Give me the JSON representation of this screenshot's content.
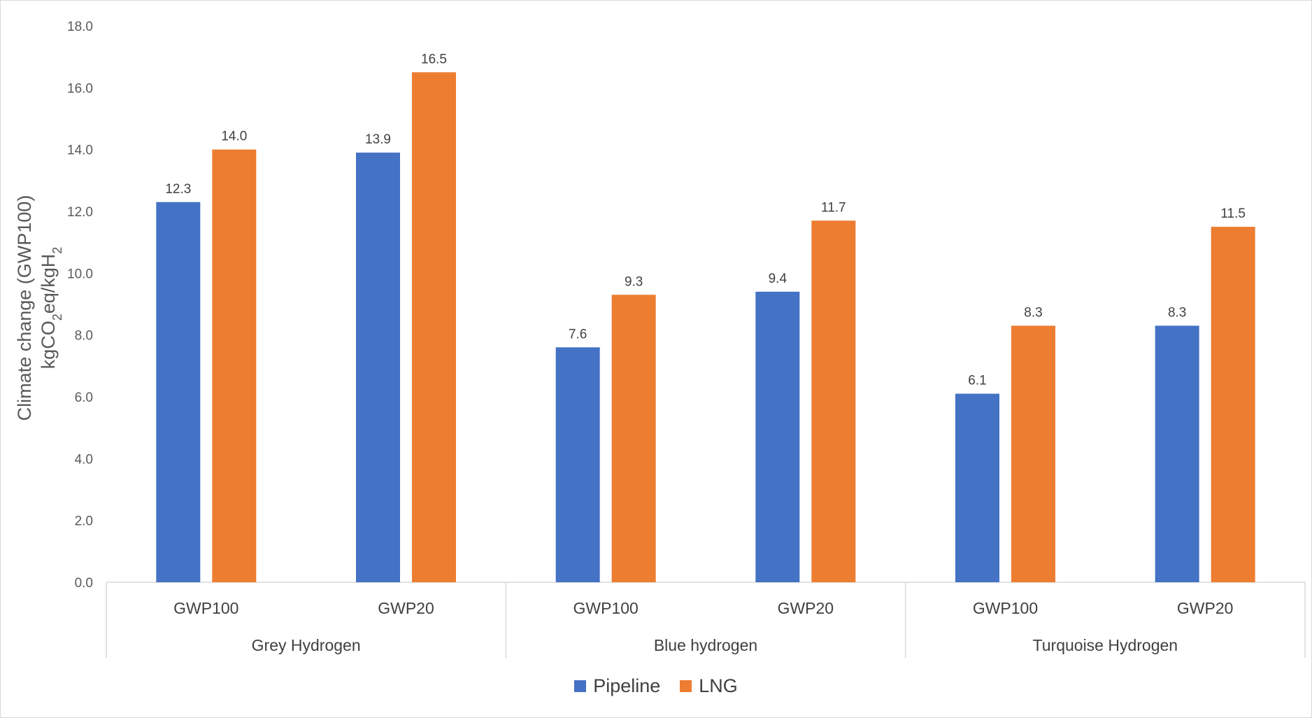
{
  "colors": {
    "pipeline": "#4472C4",
    "lng": "#ED7D31",
    "axis": "#d9d9d9",
    "text": "#595959"
  },
  "chart_data": {
    "type": "bar",
    "ylabel_line1": "Climate change (GWP100)",
    "ylabel_line2": "kgCO",
    "ylabel_sub1": "2",
    "ylabel_line2b": "eq/kgH",
    "ylabel_sub2": "2",
    "ylim": [
      0,
      18
    ],
    "yticks": [
      "0.0",
      "2.0",
      "4.0",
      "6.0",
      "8.0",
      "10.0",
      "12.0",
      "14.0",
      "16.0",
      "18.0"
    ],
    "grid": false,
    "legend_position": "bottom",
    "groups": [
      {
        "name": "Grey Hydrogen",
        "categories": [
          "GWP100",
          "GWP20"
        ]
      },
      {
        "name": "Blue hydrogen",
        "categories": [
          "GWP100",
          "GWP20"
        ]
      },
      {
        "name": "Turquoise Hydrogen",
        "categories": [
          "GWP100",
          "GWP20"
        ]
      }
    ],
    "series": [
      {
        "name": "Pipeline",
        "values": [
          12.3,
          13.9,
          7.6,
          9.4,
          6.1,
          8.3
        ],
        "labels": [
          "12.3",
          "13.9",
          "7.6",
          "9.4",
          "6.1",
          "8.3"
        ]
      },
      {
        "name": "LNG",
        "values": [
          14.0,
          16.5,
          9.3,
          11.7,
          8.3,
          11.5
        ],
        "labels": [
          "14.0",
          "16.5",
          "9.3",
          "11.7",
          "8.3",
          "11.5"
        ]
      }
    ]
  }
}
